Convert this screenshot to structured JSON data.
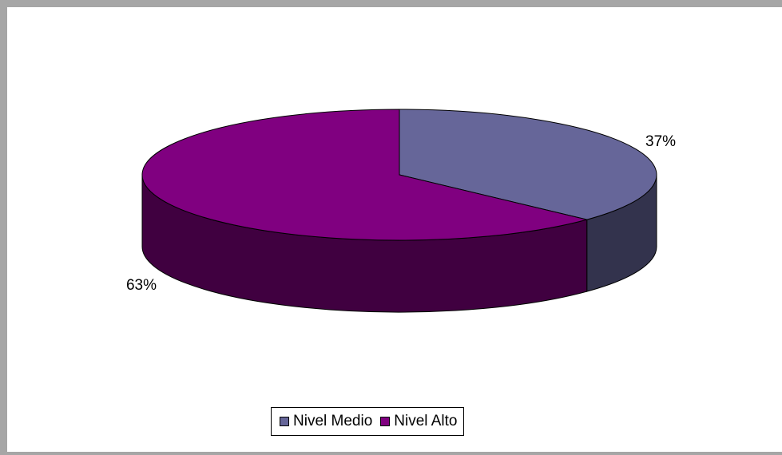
{
  "chart_data": {
    "type": "pie",
    "style": "3d",
    "start_angle_deg": 0,
    "direction": "clockwise",
    "legend_position": "bottom",
    "slices": [
      {
        "label": "Nivel Medio",
        "value": 37,
        "display": "37%",
        "color": "#666699"
      },
      {
        "label": "Nivel Alto",
        "value": 63,
        "display": "63%",
        "color": "#800080"
      }
    ]
  }
}
